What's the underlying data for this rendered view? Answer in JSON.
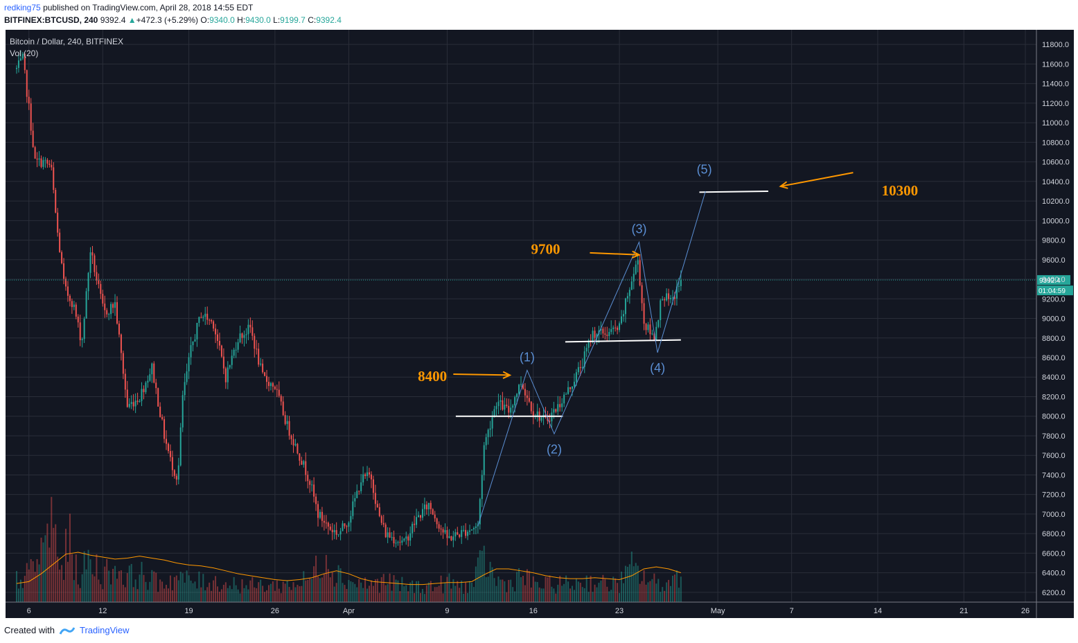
{
  "header": {
    "author": "redking75",
    "published": "published on TradingView.com, April 28, 2018 14:55 EDT",
    "symbol": "BITFINEX:BTCUSD, 240",
    "last": "9392.4",
    "change": "+472.3 (+5.29%)",
    "open": "9340.0",
    "high": "9430.0",
    "low": "9199.7",
    "close": "9392.4"
  },
  "footer": {
    "created": "Created with",
    "brand": "TradingView"
  },
  "chart_data": {
    "type": "candlestick",
    "title": "Bitcoin / Dollar, 240, BITFINEX",
    "indicator": "Vol (20)",
    "ylim": [
      6100,
      11950
    ],
    "y_ticks": [
      6200,
      6400,
      6600,
      6800,
      7000,
      7200,
      7400,
      7600,
      7800,
      8000,
      8200,
      8400,
      8600,
      8800,
      9000,
      9200,
      9400,
      9600,
      9800,
      10000,
      10200,
      10400,
      10600,
      10800,
      11000,
      11200,
      11400,
      11600,
      11800
    ],
    "x_ticks": [
      {
        "label": "6",
        "day": 6
      },
      {
        "label": "12",
        "day": 12
      },
      {
        "label": "19",
        "day": 19
      },
      {
        "label": "26",
        "day": 26
      },
      {
        "label": "Apr",
        "day": 32
      },
      {
        "label": "9",
        "day": 40
      },
      {
        "label": "16",
        "day": 47
      },
      {
        "label": "23",
        "day": 54
      },
      {
        "label": "May",
        "day": 62
      },
      {
        "label": "7",
        "day": 68
      },
      {
        "label": "14",
        "day": 75
      },
      {
        "label": "21",
        "day": 82
      },
      {
        "label": "26",
        "day": 87
      }
    ],
    "xlim_days": [
      4.1,
      87.9
    ],
    "last_price": "9392.4",
    "countdown": "01:04:59",
    "price_path": [
      [
        5.0,
        11550
      ],
      [
        5.5,
        11650
      ],
      [
        6.0,
        11150
      ],
      [
        6.5,
        10600
      ],
      [
        7.2,
        10600
      ],
      [
        7.8,
        10550
      ],
      [
        8.3,
        9900
      ],
      [
        8.9,
        9300
      ],
      [
        9.6,
        9150
      ],
      [
        10.3,
        8750
      ],
      [
        11.0,
        9700
      ],
      [
        11.5,
        9400
      ],
      [
        12.1,
        9050
      ],
      [
        13.0,
        9150
      ],
      [
        14.0,
        8100
      ],
      [
        15.0,
        8200
      ],
      [
        16.0,
        8500
      ],
      [
        17.0,
        7800
      ],
      [
        17.5,
        7550
      ],
      [
        18.1,
        7350
      ],
      [
        18.5,
        8200
      ],
      [
        19.2,
        8700
      ],
      [
        20.0,
        9050
      ],
      [
        21.0,
        8950
      ],
      [
        22.0,
        8400
      ],
      [
        23.0,
        8800
      ],
      [
        24.0,
        8900
      ],
      [
        25.0,
        8400
      ],
      [
        26.0,
        8300
      ],
      [
        27.0,
        7900
      ],
      [
        28.0,
        7600
      ],
      [
        28.8,
        7350
      ],
      [
        29.5,
        7000
      ],
      [
        30.5,
        6850
      ],
      [
        31.2,
        6800
      ],
      [
        32.0,
        6950
      ],
      [
        33.0,
        7350
      ],
      [
        33.8,
        7400
      ],
      [
        34.4,
        7000
      ],
      [
        35.0,
        6800
      ],
      [
        36.5,
        6700
      ],
      [
        37.5,
        6950
      ],
      [
        38.5,
        7100
      ],
      [
        39.3,
        6900
      ],
      [
        40.0,
        6750
      ],
      [
        41.0,
        6800
      ],
      [
        42.5,
        6880
      ],
      [
        43.0,
        7700
      ],
      [
        44.0,
        8150
      ],
      [
        45.0,
        8050
      ],
      [
        46.0,
        8350
      ],
      [
        47.0,
        8050
      ],
      [
        48.0,
        7950
      ],
      [
        49.0,
        8100
      ],
      [
        50.0,
        8300
      ],
      [
        51.0,
        8550
      ],
      [
        51.8,
        8850
      ],
      [
        53.0,
        8850
      ],
      [
        54.0,
        8900
      ],
      [
        54.8,
        9300
      ],
      [
        55.5,
        9600
      ],
      [
        56.0,
        8950
      ],
      [
        56.8,
        8800
      ],
      [
        57.5,
        9250
      ],
      [
        58.2,
        9150
      ],
      [
        59.0,
        9392
      ]
    ],
    "volume_profile": [
      [
        5,
        320
      ],
      [
        6,
        380
      ],
      [
        7,
        700
      ],
      [
        8,
        1200
      ],
      [
        8.5,
        400
      ],
      [
        9.3,
        850
      ],
      [
        10,
        350
      ],
      [
        11,
        600
      ],
      [
        12,
        380
      ],
      [
        13,
        500
      ],
      [
        14,
        350
      ],
      [
        15,
        400
      ],
      [
        16,
        300
      ],
      [
        17,
        280
      ],
      [
        18,
        350
      ],
      [
        19,
        300
      ],
      [
        20,
        280
      ],
      [
        21,
        300
      ],
      [
        22,
        250
      ],
      [
        23,
        260
      ],
      [
        24,
        230
      ],
      [
        25,
        240
      ],
      [
        26,
        230
      ],
      [
        27,
        250
      ],
      [
        28,
        270
      ],
      [
        29,
        350
      ],
      [
        30,
        700
      ],
      [
        31,
        420
      ],
      [
        32,
        300
      ],
      [
        33,
        260
      ],
      [
        34,
        250
      ],
      [
        35,
        300
      ],
      [
        36,
        240
      ],
      [
        37,
        220
      ],
      [
        38,
        230
      ],
      [
        39,
        220
      ],
      [
        40,
        280
      ],
      [
        41,
        230
      ],
      [
        42,
        240
      ],
      [
        43,
        600
      ],
      [
        44,
        300
      ],
      [
        45,
        260
      ],
      [
        46,
        380
      ],
      [
        47,
        260
      ],
      [
        48,
        240
      ],
      [
        49,
        260
      ],
      [
        50,
        250
      ],
      [
        51,
        300
      ],
      [
        52,
        280
      ],
      [
        53,
        250
      ],
      [
        54,
        260
      ],
      [
        55,
        480
      ],
      [
        56,
        350
      ],
      [
        57,
        260
      ],
      [
        58,
        260
      ],
      [
        59,
        430
      ]
    ],
    "ma_line": [
      [
        5,
        6290
      ],
      [
        6,
        6310
      ],
      [
        7,
        6390
      ],
      [
        8,
        6490
      ],
      [
        9,
        6590
      ],
      [
        10,
        6610
      ],
      [
        11,
        6580
      ],
      [
        12,
        6560
      ],
      [
        13,
        6540
      ],
      [
        14,
        6550
      ],
      [
        15,
        6570
      ],
      [
        16,
        6550
      ],
      [
        17,
        6530
      ],
      [
        18,
        6500
      ],
      [
        19,
        6480
      ],
      [
        20,
        6470
      ],
      [
        21,
        6450
      ],
      [
        22,
        6420
      ],
      [
        23,
        6390
      ],
      [
        24,
        6370
      ],
      [
        25,
        6350
      ],
      [
        26,
        6330
      ],
      [
        27,
        6320
      ],
      [
        28,
        6330
      ],
      [
        29,
        6350
      ],
      [
        30,
        6390
      ],
      [
        31,
        6420
      ],
      [
        32,
        6390
      ],
      [
        33,
        6340
      ],
      [
        34,
        6310
      ],
      [
        35,
        6300
      ],
      [
        36,
        6290
      ],
      [
        37,
        6280
      ],
      [
        38,
        6280
      ],
      [
        39,
        6290
      ],
      [
        40,
        6300
      ],
      [
        41,
        6300
      ],
      [
        42,
        6310
      ],
      [
        43,
        6380
      ],
      [
        44,
        6440
      ],
      [
        45,
        6440
      ],
      [
        46,
        6420
      ],
      [
        47,
        6400
      ],
      [
        48,
        6370
      ],
      [
        49,
        6350
      ],
      [
        50,
        6340
      ],
      [
        51,
        6340
      ],
      [
        52,
        6350
      ],
      [
        53,
        6340
      ],
      [
        54,
        6330
      ],
      [
        55,
        6370
      ],
      [
        56,
        6440
      ],
      [
        57,
        6460
      ],
      [
        58,
        6440
      ],
      [
        59,
        6400
      ]
    ],
    "wave_line": [
      [
        42.5,
        6880
      ],
      [
        46.5,
        8470
      ],
      [
        48.7,
        7820
      ],
      [
        55.6,
        9780
      ],
      [
        57.1,
        8650
      ],
      [
        61.0,
        10300
      ]
    ],
    "wave_labels": [
      {
        "label": "(1)",
        "day": 46.5,
        "price": 8560
      },
      {
        "label": "(2)",
        "day": 48.7,
        "price": 7620
      },
      {
        "label": "(3)",
        "day": 55.6,
        "price": 9870
      },
      {
        "label": "(4)",
        "day": 57.1,
        "price": 8450
      },
      {
        "label": "(5)",
        "day": 60.9,
        "price": 10480
      }
    ],
    "levels": [
      {
        "d1": 40.7,
        "d2": 49.4,
        "p1": 8000,
        "p2": 8000
      },
      {
        "d1": 49.6,
        "d2": 59.0,
        "p1": 8760,
        "p2": 8780
      },
      {
        "d1": 60.5,
        "d2": 66.1,
        "p1": 10290,
        "p2": 10300
      }
    ],
    "annotations": [
      {
        "text": "8400",
        "day": 38.8,
        "price": 8400,
        "ad1": 40.5,
        "ap1": 8430,
        "ad2": 45.1,
        "ap2": 8420
      },
      {
        "text": "9700",
        "day": 48.0,
        "price": 9700,
        "ad1": 51.6,
        "ap1": 9670,
        "ad2": 55.6,
        "ap2": 9650
      },
      {
        "text": "10300",
        "day": 76.8,
        "price": 10300,
        "ad1": 73.0,
        "ap1": 10490,
        "ad2": 67.1,
        "ap2": 10350
      }
    ],
    "colors": {
      "up": "#26a69a",
      "down": "#ef5350",
      "wave": "#5b8fd4",
      "annotation": "#ff9800",
      "ma": "#ff9800",
      "label_bg": "#26a69a"
    }
  }
}
